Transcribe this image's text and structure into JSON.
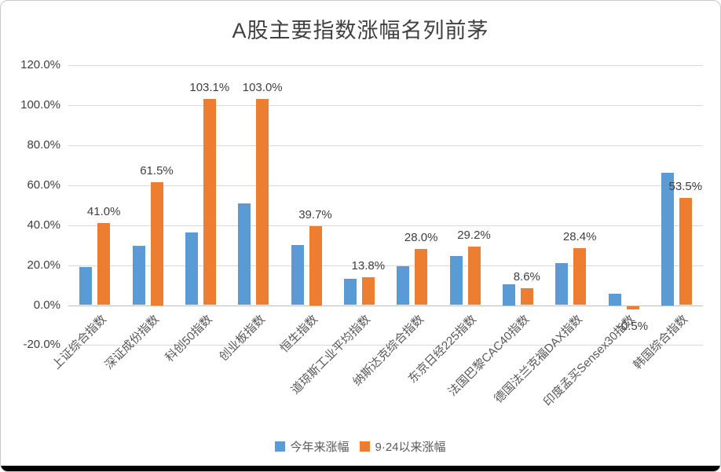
{
  "chart_data": {
    "type": "bar",
    "title": "A股主要指数涨幅名列前茅",
    "categories": [
      "上证综合指数",
      "深证成份指数",
      "科创50指数",
      "创业板指数",
      "恒生指数",
      "道琼斯工业平均指数",
      "纳斯达克综合指数",
      "东京日经225指数",
      "法国巴黎CAC40指数",
      "德国法兰克福DAX指数",
      "印度孟买Sensex30指数",
      "韩国综合指数"
    ],
    "series": [
      {
        "name": "今年来涨幅",
        "color": "#5B9BD5",
        "values": [
          18.9,
          29.5,
          36.5,
          50.8,
          30.0,
          13.3,
          19.3,
          24.5,
          10.6,
          21.0,
          5.7,
          66.4
        ],
        "show_labels": false
      },
      {
        "name": "9·24以来涨幅",
        "color": "#ED7D31",
        "values": [
          41.0,
          61.5,
          103.1,
          103.0,
          39.7,
          13.8,
          28.0,
          29.2,
          8.6,
          28.4,
          -0.5,
          53.5
        ],
        "labels": [
          "41.0%",
          "61.5%",
          "103.1%",
          "103.0%",
          "39.7%",
          "13.8%",
          "28.0%",
          "29.2%",
          "8.6%",
          "28.4%",
          "-0.5%",
          "53.5%"
        ],
        "show_labels": true
      }
    ],
    "y_axis": {
      "min": -20,
      "max": 120,
      "step": 20,
      "tick_labels": [
        "120.0%",
        "100.0%",
        "80.0%",
        "60.0%",
        "40.0%",
        "20.0%",
        "0.0%",
        "-20.0%"
      ]
    },
    "grid": true,
    "legend_position": "bottom",
    "colors": {
      "gridline": "#d9d9d9",
      "axis_line": "#bfbfbf",
      "title_text": "#404040",
      "tick_text": "#404040",
      "label_text": "#404040",
      "category_text": "#595959",
      "legend_text": "#595959"
    }
  }
}
